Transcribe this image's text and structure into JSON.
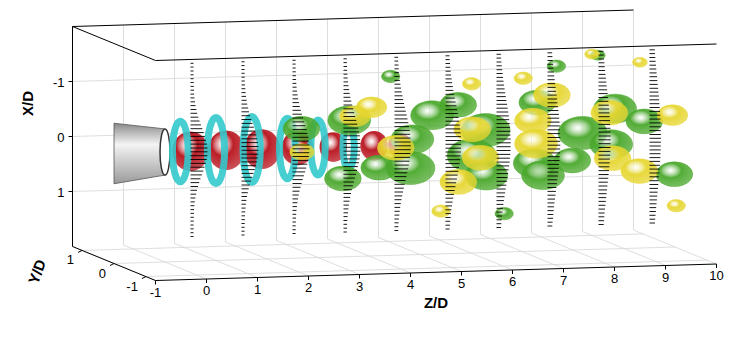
{
  "chart_data": {
    "type": "isosurface3d",
    "xlabel": "X/D",
    "ylabel": "Y/D",
    "zlabel": "Z/D",
    "xlim": [
      -2,
      2
    ],
    "ylim": [
      -1.3,
      1.3
    ],
    "zlim": [
      -1,
      10
    ],
    "xticks": [
      -1,
      0,
      1
    ],
    "yticks": [
      -1,
      0,
      1
    ],
    "zticks": [
      -1,
      0,
      1,
      2,
      3,
      4,
      5,
      6,
      7,
      8,
      9,
      10
    ],
    "grid": true,
    "series": [
      {
        "type": "core",
        "color": "#b8121c",
        "z": [
          0.5,
          1.2,
          1.9,
          2.6,
          3.3,
          4.1,
          4.6
        ],
        "x": [
          0,
          0,
          0,
          0,
          0,
          0,
          0
        ],
        "y": [
          0,
          0,
          0,
          0,
          0,
          0,
          0
        ],
        "size": [
          0.4,
          0.4,
          0.4,
          0.35,
          0.3,
          0.3,
          0.25
        ]
      },
      {
        "type": "ring",
        "color": "#33c9cc",
        "z": [
          0.3,
          1.0,
          1.7,
          2.4,
          3.0,
          3.6
        ],
        "x": [
          0,
          0,
          0,
          0,
          0,
          0
        ],
        "y": [
          0,
          0,
          0,
          0,
          0,
          0
        ],
        "size": [
          0.55,
          0.6,
          0.6,
          0.55,
          0.5,
          0.4
        ]
      },
      {
        "type": "blob",
        "color": "#4aa82c",
        "z": [
          2.8,
          3.3,
          3.8,
          4.2,
          4.6,
          5.0,
          5.3,
          5.7,
          6.0,
          6.3,
          6.6,
          7.0,
          7.3,
          7.6,
          8.0,
          8.3,
          8.7,
          9.0,
          9.4,
          9.8,
          4.8,
          7.8,
          8.8,
          6.4
        ],
        "x": [
          -0.3,
          0.5,
          -0.4,
          0.4,
          -0.2,
          0.5,
          -0.5,
          0.1,
          -0.6,
          0.6,
          -0.1,
          0.3,
          -0.7,
          0.7,
          -0.2,
          0.5,
          -0.6,
          0.2,
          -0.3,
          0.6,
          -1.1,
          -1.3,
          -1.4,
          1.2
        ],
        "y": [
          0.2,
          -0.3,
          0.3,
          0,
          -0.4,
          0.3,
          0.1,
          -0.5,
          0.4,
          0,
          0.5,
          -0.4,
          0,
          0.3,
          -0.3,
          0.5,
          -0.2,
          0.4,
          0,
          -0.3,
          0.6,
          0.2,
          0.5,
          -0.4
        ],
        "size": [
          0.3,
          0.3,
          0.35,
          0.3,
          0.35,
          0.4,
          0.35,
          0.4,
          0.3,
          0.35,
          0.4,
          0.35,
          0.3,
          0.35,
          0.4,
          0.3,
          0.35,
          0.35,
          0.3,
          0.3,
          0.15,
          0.15,
          0.12,
          0.15
        ]
      },
      {
        "type": "blob",
        "color": "#e6d630",
        "z": [
          3.0,
          3.6,
          4.3,
          4.9,
          5.5,
          5.9,
          6.5,
          6.9,
          7.4,
          7.9,
          8.4,
          8.9,
          9.3,
          9.7,
          6.2,
          6.9,
          8.5,
          9.5,
          5.6,
          9.9
        ],
        "x": [
          0.2,
          -0.6,
          -0.6,
          0.2,
          0.6,
          -0.3,
          0.4,
          -0.5,
          0.1,
          -0.7,
          0.2,
          -0.4,
          0.6,
          -0.5,
          -1.0,
          -1.2,
          -1.5,
          -1.3,
          1.3,
          1.2
        ],
        "y": [
          0.5,
          -0.2,
          0.4,
          0.6,
          -0.4,
          -0.2,
          0.5,
          -0.5,
          0.2,
          0.5,
          -0.6,
          0.3,
          0,
          -0.4,
          0.3,
          -0.2,
          0.2,
          0.3,
          0.3,
          -0.2
        ],
        "size": [
          0.2,
          0.25,
          0.25,
          0.3,
          0.3,
          0.3,
          0.3,
          0.3,
          0.35,
          0.3,
          0.3,
          0.3,
          0.3,
          0.25,
          0.15,
          0.15,
          0.12,
          0.12,
          0.15,
          0.15
        ]
      },
      {
        "type": "profile",
        "color": "#000000",
        "z": [
          0.5,
          1.5,
          2.5,
          3.5,
          4.5,
          5.5,
          6.5,
          7.5,
          8.5,
          9.5
        ],
        "values": [
          1,
          1,
          1,
          1,
          0.95,
          0.9,
          0.8,
          0.7,
          0.65,
          0.6
        ],
        "size": [
          0.6,
          0.65,
          0.7,
          0.8,
          0.9,
          1.0,
          1.1,
          1.2,
          1.3,
          1.4
        ]
      }
    ]
  }
}
